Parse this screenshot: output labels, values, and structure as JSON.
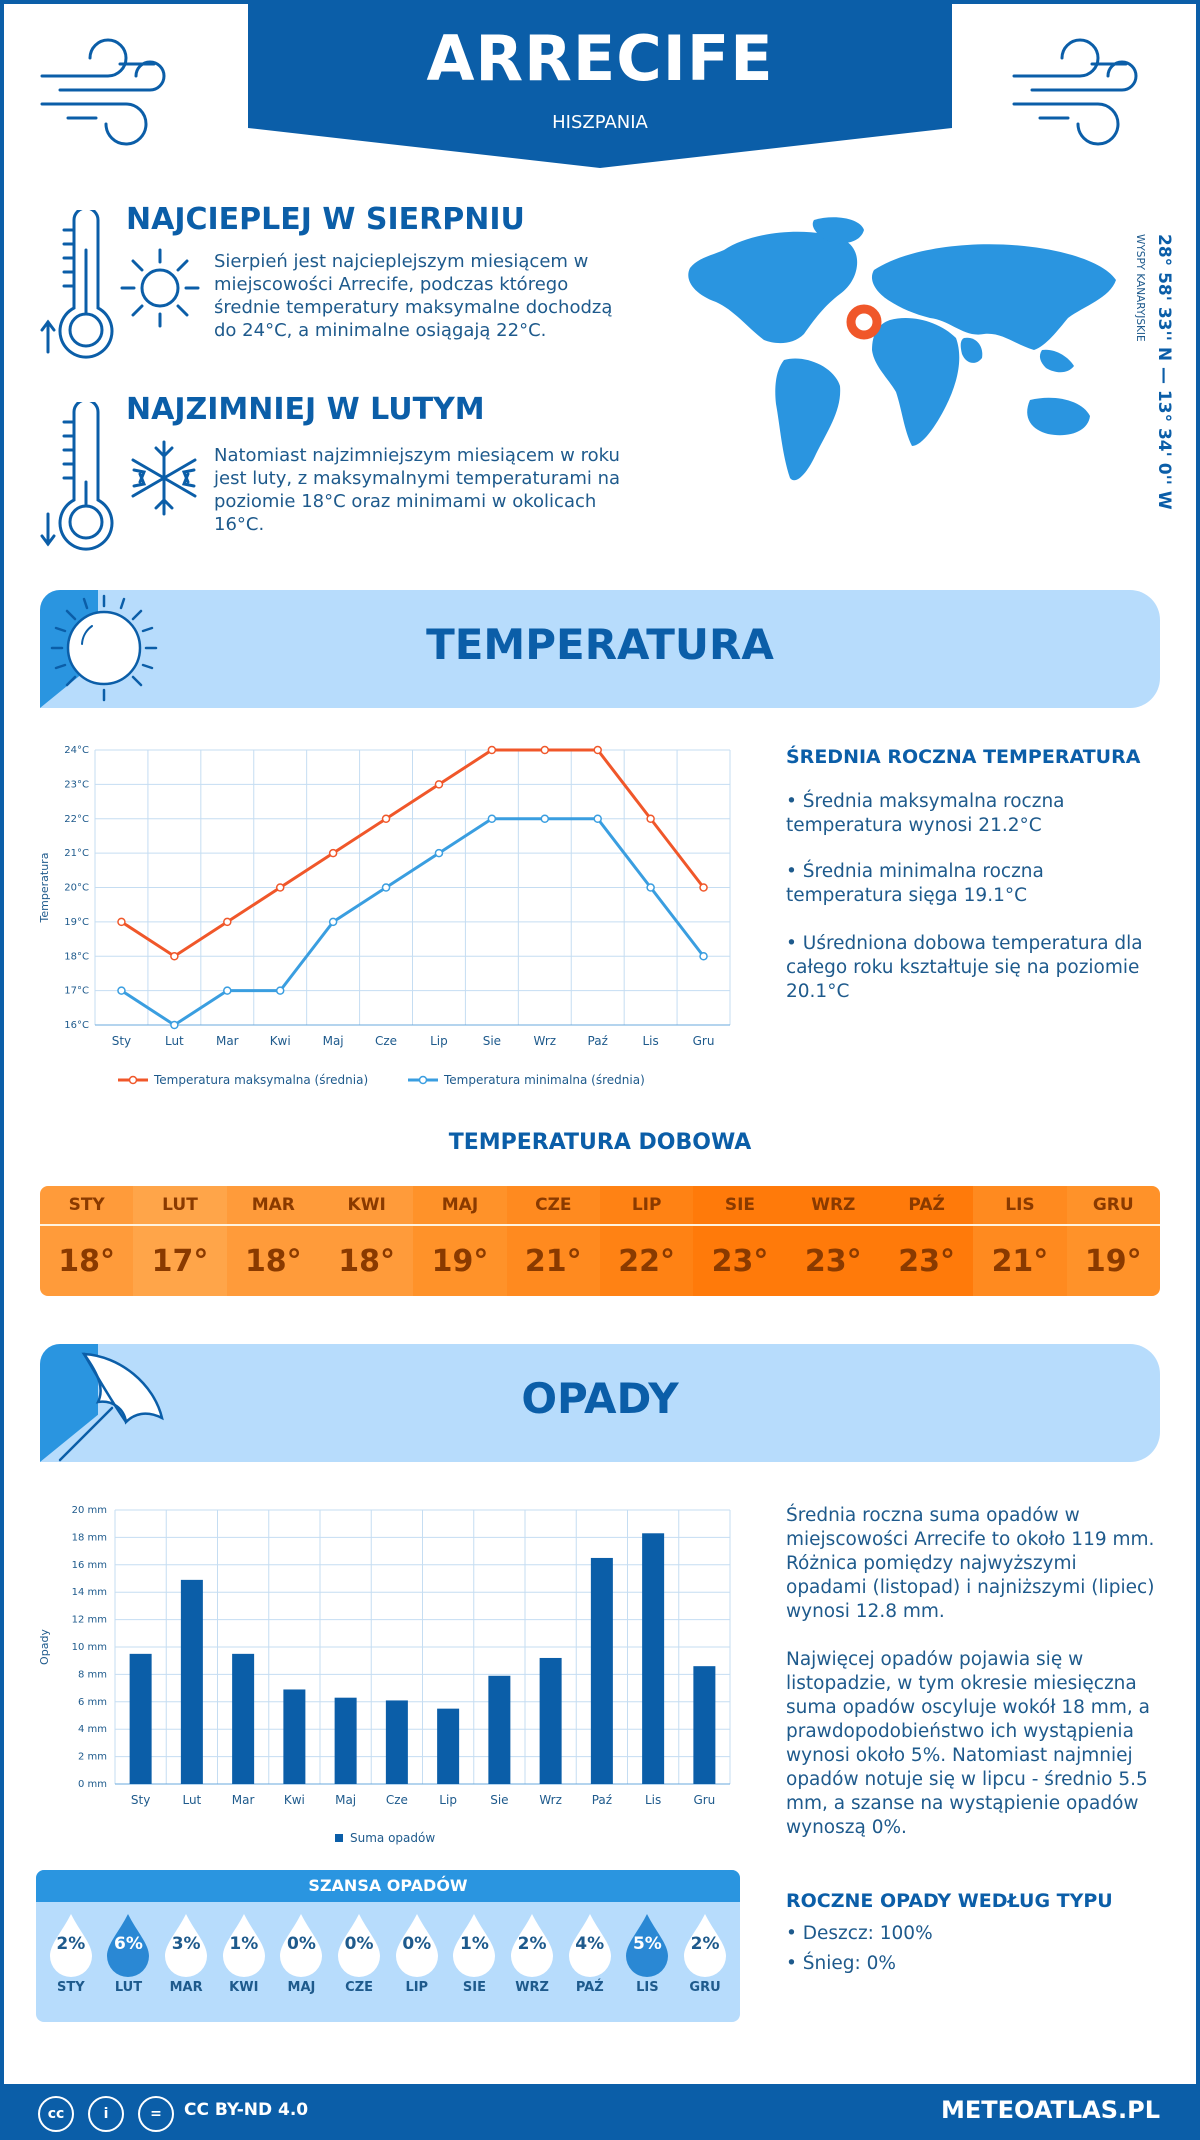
{
  "header": {
    "city": "ARRECIFE",
    "country": "HISZPANIA"
  },
  "warmest": {
    "title": "NAJCIEPLEJ W SIERPNIU",
    "text": "Sierpień jest najcieplejszym miesiącem w miejscowości Arrecife, podczas którego średnie temperatury maksymalne dochodzą do 24°C, a minimalne osiągają 22°C."
  },
  "coldest": {
    "title": "NAJZIMNIEJ W LUTYM",
    "text": "Natomiast najzimniejszym miesiącem w roku jest luty, z maksymalnymi temperaturami na poziomie 18°C oraz minimami w okolicach 16°C."
  },
  "location": {
    "coords": "28° 58' 33'' N — 13° 34' 0'' W",
    "region": "WYSPY KANARYJSKIE"
  },
  "temperature_section": {
    "title": "TEMPERATURA",
    "side_heading": "ŚREDNIA ROCZNA TEMPERATURA",
    "points": [
      "• Średnia maksymalna roczna temperatura wynosi 21.2°C",
      "• Średnia minimalna roczna temperatura sięga 19.1°C",
      "• Uśredniona dobowa temperatura dla całego roku kształtuje się na poziomie 20.1°C"
    ]
  },
  "daily": {
    "title": "TEMPERATURA DOBOWA",
    "months": [
      "STY",
      "LUT",
      "MAR",
      "KWI",
      "MAJ",
      "CZE",
      "LIP",
      "SIE",
      "WRZ",
      "PAŹ",
      "LIS",
      "GRU"
    ],
    "values": [
      "18°",
      "17°",
      "18°",
      "18°",
      "19°",
      "21°",
      "22°",
      "23°",
      "23°",
      "23°",
      "21°",
      "19°"
    ],
    "colors": [
      "#ff9b3a",
      "#ffa549",
      "#ff9b3a",
      "#ff9b3a",
      "#ff9229",
      "#ff8a1f",
      "#ff8214",
      "#ff7a0a",
      "#ff7a0a",
      "#ff7a0a",
      "#ff8a1f",
      "#ff9229"
    ]
  },
  "precip_section": {
    "title": "OPADY",
    "para1": "Średnia roczna suma opadów w miejscowości Arrecife to około 119 mm. Różnica pomiędzy najwyższymi opadami (listopad) i najniższymi (lipiec) wynosi 12.8 mm.",
    "para2": "Najwięcej opadów pojawia się w listopadzie, w tym okresie miesięczna suma opadów oscyluje wokół 18 mm, a prawdopodobieństwo ich wystąpienia wynosi około 5%. Natomiast najmniej opadów notuje się w lipcu - średnio 5.5 mm, a szanse na wystąpienie opadów wynoszą 0%.",
    "type_heading": "ROCZNE OPADY WEDŁUG TYPU",
    "types": [
      "• Deszcz: 100%",
      "• Śnieg: 0%"
    ]
  },
  "chance": {
    "title": "SZANSA OPADÓW",
    "months": [
      "STY",
      "LUT",
      "MAR",
      "KWI",
      "MAJ",
      "CZE",
      "LIP",
      "SIE",
      "WRZ",
      "PAŹ",
      "LIS",
      "GRU"
    ],
    "values": [
      "2%",
      "6%",
      "3%",
      "1%",
      "0%",
      "0%",
      "0%",
      "1%",
      "2%",
      "4%",
      "5%",
      "2%"
    ],
    "highlight": [
      false,
      true,
      false,
      false,
      false,
      false,
      false,
      false,
      false,
      false,
      true,
      false
    ]
  },
  "footer": {
    "license": "CC BY-ND 4.0",
    "site": "METEOATLAS.PL"
  },
  "chart_data": [
    {
      "type": "line",
      "categories": [
        "Sty",
        "Lut",
        "Mar",
        "Kwi",
        "Maj",
        "Cze",
        "Lip",
        "Sie",
        "Wrz",
        "Paź",
        "Lis",
        "Gru"
      ],
      "series": [
        {
          "name": "Temperatura maksymalna (średnia)",
          "values": [
            19,
            18,
            19,
            20,
            21,
            22,
            23,
            24,
            24,
            24,
            22,
            20
          ],
          "color": "#f0572a"
        },
        {
          "name": "Temperatura minimalna (średnia)",
          "values": [
            17,
            16,
            17,
            17,
            19,
            20,
            21,
            22,
            22,
            22,
            20,
            18
          ],
          "color": "#3a9ee0"
        }
      ],
      "ylabel": "Temperatura",
      "ylim": [
        16,
        24
      ],
      "yticks": [
        "16°C",
        "17°C",
        "18°C",
        "19°C",
        "20°C",
        "21°C",
        "22°C",
        "23°C",
        "24°C"
      ],
      "grid": true,
      "legend": "bottom"
    },
    {
      "type": "bar",
      "categories": [
        "Sty",
        "Lut",
        "Mar",
        "Kwi",
        "Maj",
        "Cze",
        "Lip",
        "Sie",
        "Wrz",
        "Paź",
        "Lis",
        "Gru"
      ],
      "series": [
        {
          "name": "Suma opadów",
          "values": [
            9.5,
            14.9,
            9.5,
            6.9,
            6.3,
            6.1,
            5.5,
            7.9,
            9.2,
            16.5,
            18.3,
            8.6
          ],
          "color": "#0b5ea8"
        }
      ],
      "ylabel": "Opady",
      "ylim": [
        0,
        20
      ],
      "yticks": [
        "0 mm",
        "2 mm",
        "4 mm",
        "6 mm",
        "8 mm",
        "10 mm",
        "12 mm",
        "14 mm",
        "16 mm",
        "18 mm",
        "20 mm"
      ],
      "grid": true,
      "legend": "bottom"
    }
  ]
}
